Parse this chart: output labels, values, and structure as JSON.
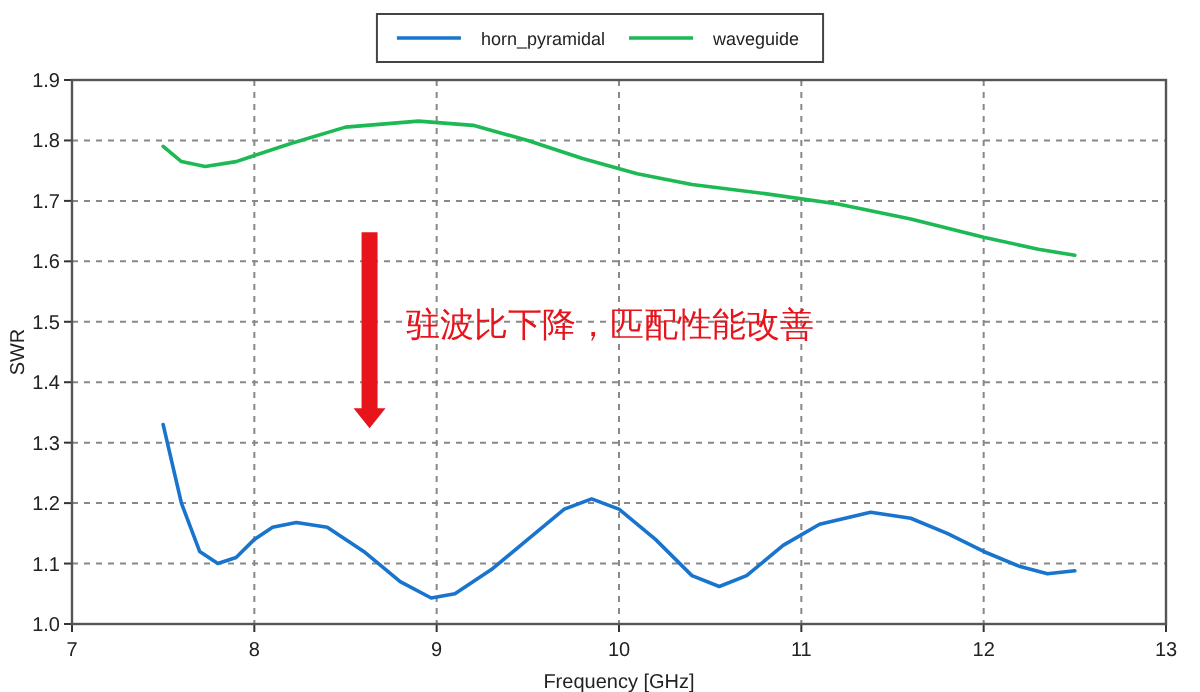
{
  "chart_data": {
    "type": "line",
    "xlabel": "Frequency [GHz]",
    "ylabel": "SWR",
    "xlim": [
      7,
      13
    ],
    "ylim": [
      1.0,
      1.9
    ],
    "xticks": [
      7,
      8,
      9,
      10,
      11,
      12,
      13
    ],
    "yticks": [
      {
        "value": 1.0,
        "label": "1.0"
      },
      1.1,
      1.2,
      1.3,
      1.4,
      1.5,
      1.6,
      1.7,
      1.8,
      1.9
    ],
    "grid": true,
    "legend": "top",
    "line_style": "solid",
    "marker": "none",
    "annotations": [
      "驻波比下降，匹配性能改善"
    ],
    "series": [
      {
        "name": "horn_pyramidal",
        "color": "#1874cd",
        "x": [
          7.5,
          7.6,
          7.7,
          7.8,
          7.9,
          8.0,
          8.1,
          8.23,
          8.4,
          8.6,
          8.8,
          8.97,
          9.1,
          9.3,
          9.5,
          9.7,
          9.85,
          10.0,
          10.2,
          10.4,
          10.55,
          10.7,
          10.9,
          11.1,
          11.38,
          11.6,
          11.8,
          12.0,
          12.2,
          12.35,
          12.5
        ],
        "values": [
          1.33,
          1.2,
          1.12,
          1.1,
          1.11,
          1.14,
          1.16,
          1.168,
          1.16,
          1.12,
          1.07,
          1.043,
          1.05,
          1.09,
          1.14,
          1.19,
          1.207,
          1.19,
          1.14,
          1.08,
          1.062,
          1.08,
          1.13,
          1.165,
          1.185,
          1.175,
          1.15,
          1.12,
          1.095,
          1.083,
          1.088
        ]
      },
      {
        "name": "waveguide",
        "color": "#1db954",
        "x": [
          7.5,
          7.6,
          7.73,
          7.9,
          8.2,
          8.5,
          8.9,
          9.2,
          9.5,
          9.8,
          10.1,
          10.4,
          10.8,
          11.2,
          11.6,
          12.0,
          12.3,
          12.5
        ],
        "values": [
          1.79,
          1.765,
          1.757,
          1.765,
          1.795,
          1.822,
          1.832,
          1.825,
          1.8,
          1.77,
          1.745,
          1.727,
          1.712,
          1.695,
          1.67,
          1.64,
          1.62,
          1.61
        ]
      }
    ]
  }
}
